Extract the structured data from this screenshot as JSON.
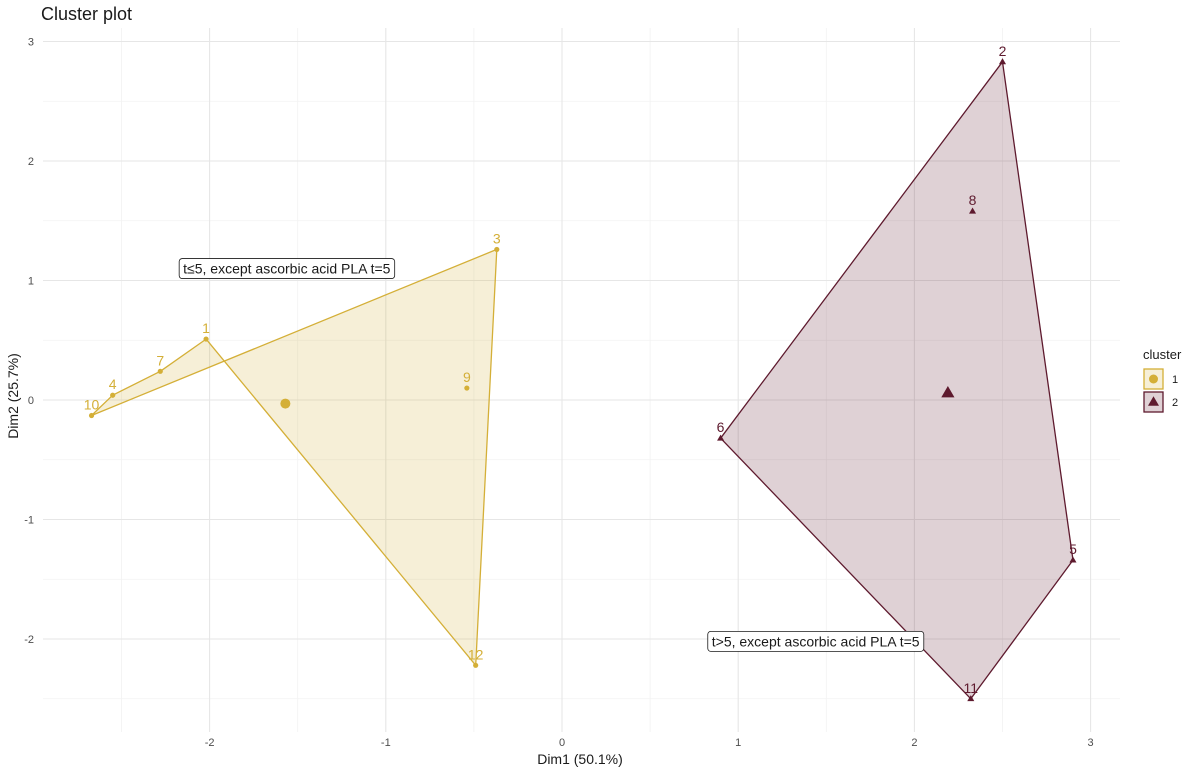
{
  "chart_data": {
    "type": "scatter",
    "title": "Cluster plot",
    "xlabel": "Dim1 (50.1%)",
    "ylabel": "Dim2 (25.7%)",
    "xlim": [
      -3.0,
      3.2
    ],
    "ylim": [
      -2.7,
      3.1
    ],
    "x_ticks": [
      -2,
      -1,
      0,
      1,
      2,
      3
    ],
    "y_ticks": [
      -2,
      -1,
      0,
      1,
      2,
      3
    ],
    "grid": true,
    "legend": {
      "title": "cluster",
      "position": "right"
    },
    "clusters": [
      {
        "name": "1",
        "color": "#d4af37",
        "marker": "circle",
        "hull": [
          "10",
          "3",
          "12"
        ],
        "hull_extra": [
          "1",
          "7",
          "4"
        ],
        "centroid": {
          "x": -1.57,
          "y": -0.03
        },
        "points": [
          {
            "label": "1",
            "x": -2.02,
            "y": 0.51
          },
          {
            "label": "3",
            "x": -0.37,
            "y": 1.26
          },
          {
            "label": "4",
            "x": -2.55,
            "y": 0.04
          },
          {
            "label": "7",
            "x": -2.28,
            "y": 0.24
          },
          {
            "label": "9",
            "x": -0.54,
            "y": 0.1
          },
          {
            "label": "10",
            "x": -2.67,
            "y": -0.13
          },
          {
            "label": "12",
            "x": -0.49,
            "y": -2.22
          }
        ]
      },
      {
        "name": "2",
        "color": "#5e1a2e",
        "marker": "triangle",
        "hull": [
          "6",
          "2",
          "5",
          "11"
        ],
        "centroid": {
          "x": 2.19,
          "y": 0.06
        },
        "points": [
          {
            "label": "2",
            "x": 2.5,
            "y": 2.83
          },
          {
            "label": "5",
            "x": 2.9,
            "y": -1.34
          },
          {
            "label": "6",
            "x": 0.9,
            "y": -0.32
          },
          {
            "label": "8",
            "x": 2.33,
            "y": 1.58
          },
          {
            "label": "11",
            "x": 2.32,
            "y": -2.5
          }
        ]
      }
    ],
    "annotations": [
      {
        "text": "t≤5, except ascorbic acid PLA t=5",
        "x": -2.15,
        "y": 1.1
      },
      {
        "text": "t>5, except ascorbic acid PLA t=5",
        "x": 0.85,
        "y": -2.02
      }
    ]
  }
}
